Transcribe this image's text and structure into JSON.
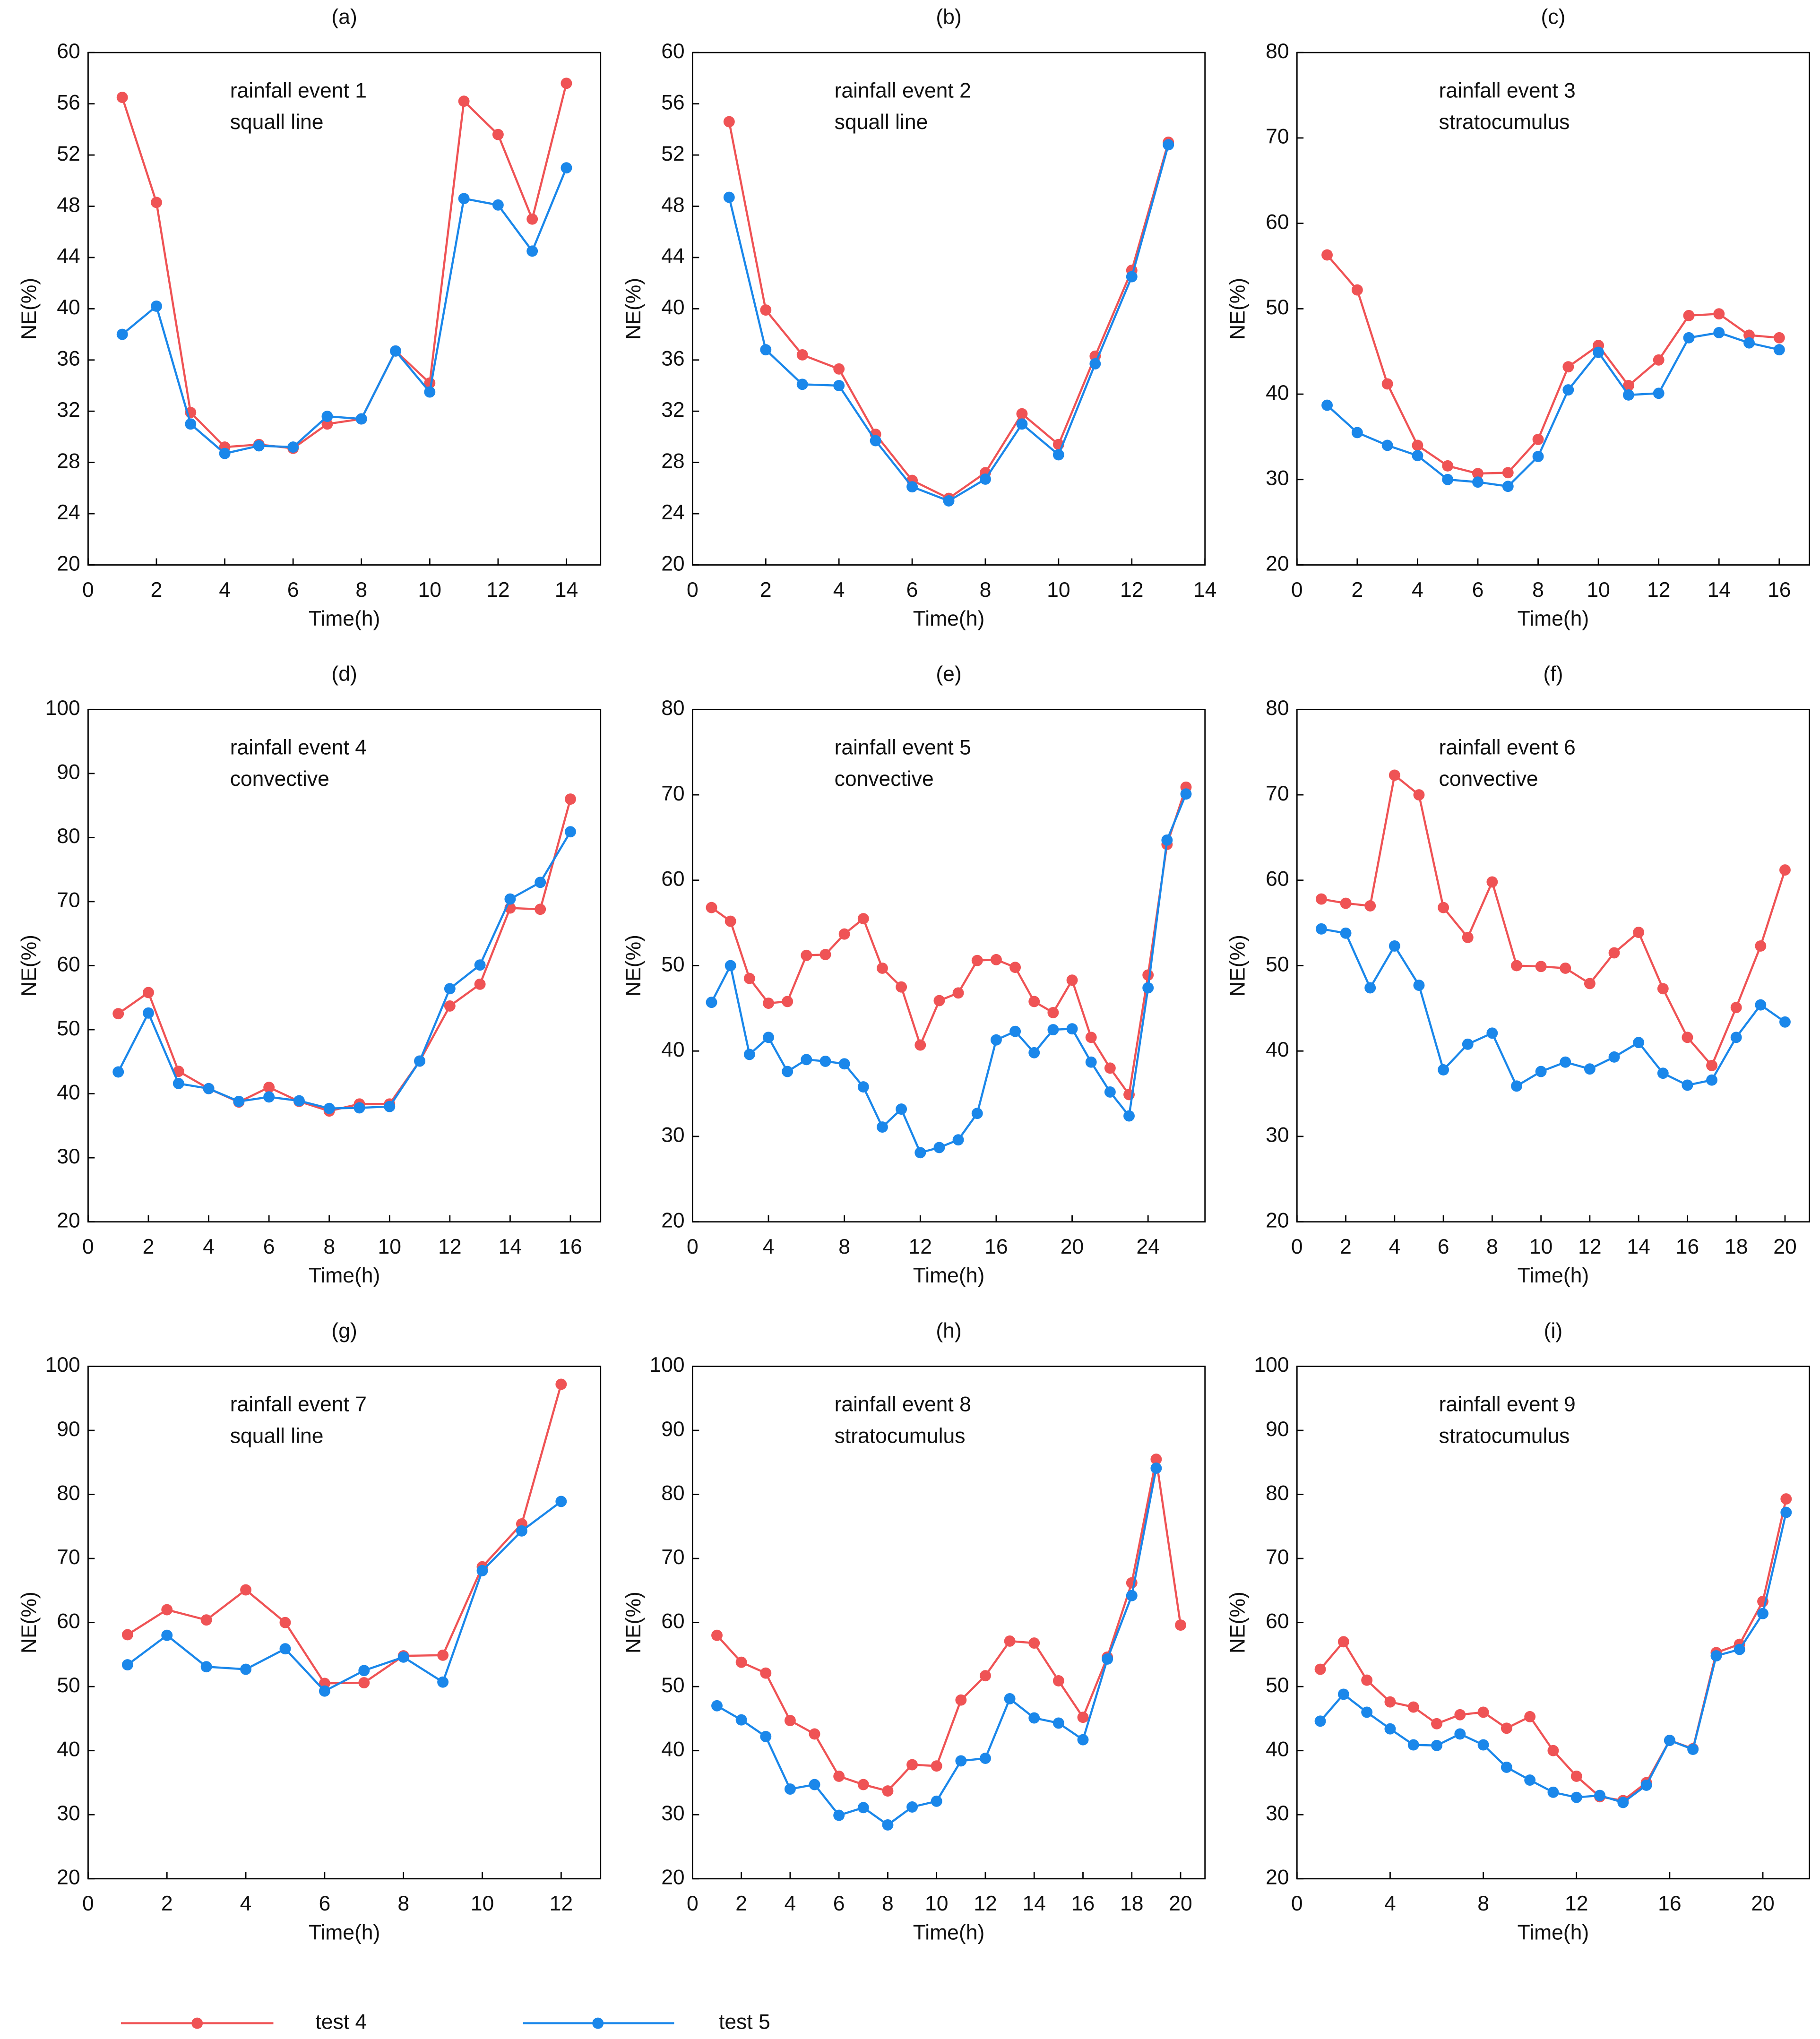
{
  "chart_data": [
    {
      "type": "line",
      "title": "(a)",
      "annotation": [
        "rainfall event 1",
        "squall line"
      ],
      "xlabel": "Time(h)",
      "ylabel": "NE(%)",
      "x": [
        1,
        2,
        3,
        4,
        5,
        6,
        7,
        8,
        9,
        10,
        11,
        12,
        13,
        14
      ],
      "xlim": [
        0,
        15
      ],
      "xticks": [
        0,
        2,
        4,
        6,
        8,
        10,
        12,
        14
      ],
      "ylim": [
        20,
        60
      ],
      "yticks": [
        20,
        24,
        28,
        32,
        36,
        40,
        44,
        48,
        52,
        56,
        60
      ],
      "series": [
        {
          "name": "test 4",
          "color": "#ef5355",
          "values": [
            56.5,
            48.3,
            31.9,
            29.2,
            29.4,
            29.1,
            31.0,
            31.4,
            36.7,
            34.2,
            56.2,
            53.6,
            47.0,
            57.6
          ]
        },
        {
          "name": "test 5",
          "color": "#1a87ea",
          "values": [
            38.0,
            40.2,
            31.0,
            28.7,
            29.3,
            29.2,
            31.6,
            31.4,
            36.7,
            33.5,
            48.6,
            48.1,
            44.5,
            51.0
          ]
        }
      ]
    },
    {
      "type": "line",
      "title": "(b)",
      "annotation": [
        "rainfall event 2",
        "squall line"
      ],
      "xlabel": "Time(h)",
      "ylabel": "NE(%)",
      "x": [
        1,
        2,
        3,
        4,
        5,
        6,
        7,
        8,
        9,
        10,
        11,
        12,
        13
      ],
      "xlim": [
        0,
        14
      ],
      "xticks": [
        0,
        2,
        4,
        6,
        8,
        10,
        12,
        14
      ],
      "ylim": [
        20,
        60
      ],
      "yticks": [
        20,
        24,
        28,
        32,
        36,
        40,
        44,
        48,
        52,
        56,
        60
      ],
      "series": [
        {
          "name": "test 4",
          "color": "#ef5355",
          "values": [
            54.6,
            39.9,
            36.4,
            35.3,
            30.2,
            26.6,
            25.2,
            27.2,
            31.8,
            29.4,
            36.3,
            43.0,
            53.0
          ]
        },
        {
          "name": "test 5",
          "color": "#1a87ea",
          "values": [
            48.7,
            36.8,
            34.1,
            34.0,
            29.7,
            26.1,
            25.0,
            26.7,
            31.0,
            28.6,
            35.7,
            42.5,
            52.8
          ]
        }
      ]
    },
    {
      "type": "line",
      "title": "(c)",
      "annotation": [
        "rainfall event 3",
        "stratocumulus"
      ],
      "xlabel": "Time(h)",
      "ylabel": "NE(%)",
      "x": [
        1,
        2,
        3,
        4,
        5,
        6,
        7,
        8,
        9,
        10,
        11,
        12,
        13,
        14,
        15,
        16
      ],
      "xlim": [
        0,
        17
      ],
      "xticks": [
        0,
        2,
        4,
        6,
        8,
        10,
        12,
        14,
        16
      ],
      "ylim": [
        20,
        80
      ],
      "yticks": [
        20,
        30,
        40,
        50,
        60,
        70,
        80
      ],
      "series": [
        {
          "name": "test 4",
          "color": "#ef5355",
          "values": [
            56.3,
            52.2,
            41.2,
            34.0,
            31.6,
            30.7,
            30.8,
            34.7,
            43.2,
            45.7,
            41.0,
            44.0,
            49.2,
            49.4,
            46.9,
            46.6
          ]
        },
        {
          "name": "test 5",
          "color": "#1a87ea",
          "values": [
            38.7,
            35.5,
            34.0,
            32.8,
            30.0,
            29.7,
            29.2,
            32.7,
            40.5,
            44.9,
            39.9,
            40.1,
            46.6,
            47.2,
            46.0,
            45.2
          ]
        }
      ]
    },
    {
      "type": "line",
      "title": "(d)",
      "annotation": [
        "rainfall event 4",
        "convective"
      ],
      "xlabel": "Time(h)",
      "ylabel": "NE(%)",
      "x": [
        1,
        2,
        3,
        4,
        5,
        6,
        7,
        8,
        9,
        10,
        11,
        12,
        13,
        14,
        15,
        16
      ],
      "xlim": [
        0,
        17
      ],
      "xticks": [
        0,
        2,
        4,
        6,
        8,
        10,
        12,
        14,
        16
      ],
      "ylim": [
        20,
        100
      ],
      "yticks": [
        20,
        30,
        40,
        50,
        60,
        70,
        80,
        90,
        100
      ],
      "series": [
        {
          "name": "test 4",
          "color": "#ef5355",
          "values": [
            52.5,
            55.8,
            43.5,
            40.8,
            38.7,
            41.0,
            38.8,
            37.3,
            38.4,
            38.4,
            45.1,
            53.7,
            57.1,
            69.0,
            68.8,
            86.0
          ]
        },
        {
          "name": "test 5",
          "color": "#1a87ea",
          "values": [
            43.4,
            52.6,
            41.6,
            40.8,
            38.8,
            39.5,
            38.9,
            37.7,
            37.8,
            38.0,
            45.1,
            56.4,
            60.1,
            70.4,
            73.0,
            80.9
          ]
        }
      ]
    },
    {
      "type": "line",
      "title": "(e)",
      "annotation": [
        "rainfall event 5",
        "convective"
      ],
      "xlabel": "Time(h)",
      "ylabel": "NE(%)",
      "x": [
        1,
        2,
        3,
        4,
        5,
        6,
        7,
        8,
        9,
        10,
        11,
        12,
        13,
        14,
        15,
        16,
        17,
        18,
        19,
        20,
        21,
        22,
        23,
        24,
        25,
        26
      ],
      "xlim": [
        0,
        27
      ],
      "xticks": [
        0,
        4,
        8,
        12,
        16,
        20,
        24
      ],
      "ylim": [
        20,
        80
      ],
      "yticks": [
        20,
        30,
        40,
        50,
        60,
        70,
        80
      ],
      "series": [
        {
          "name": "test 4",
          "color": "#ef5355",
          "values": [
            56.8,
            55.2,
            48.5,
            45.6,
            45.8,
            51.2,
            51.3,
            53.7,
            55.5,
            49.7,
            47.5,
            40.7,
            45.9,
            46.8,
            50.6,
            50.7,
            49.8,
            45.8,
            44.5,
            48.3,
            41.6,
            38.0,
            34.9,
            48.9,
            64.2,
            70.9
          ]
        },
        {
          "name": "test 5",
          "color": "#1a87ea",
          "values": [
            45.7,
            50.0,
            39.6,
            41.6,
            37.6,
            39.0,
            38.8,
            38.5,
            35.8,
            31.1,
            33.2,
            28.1,
            28.7,
            29.6,
            32.7,
            41.3,
            42.3,
            39.8,
            42.5,
            42.6,
            38.7,
            35.2,
            32.4,
            47.4,
            64.7,
            70.1
          ]
        }
      ]
    },
    {
      "type": "line",
      "title": "(f)",
      "annotation": [
        "rainfall event 6",
        "convective"
      ],
      "xlabel": "Time(h)",
      "ylabel": "NE(%)",
      "x": [
        1,
        2,
        3,
        4,
        5,
        6,
        7,
        8,
        9,
        10,
        11,
        12,
        13,
        14,
        15,
        16,
        17,
        18,
        19,
        20
      ],
      "xlim": [
        0,
        21
      ],
      "xticks": [
        0,
        2,
        4,
        6,
        8,
        10,
        12,
        14,
        16,
        18,
        20
      ],
      "ylim": [
        20,
        80
      ],
      "yticks": [
        20,
        30,
        40,
        50,
        60,
        70,
        80
      ],
      "series": [
        {
          "name": "test 4",
          "color": "#ef5355",
          "values": [
            57.8,
            57.3,
            57.0,
            72.3,
            70.0,
            56.8,
            53.3,
            59.8,
            50.0,
            49.9,
            49.7,
            47.9,
            51.5,
            53.9,
            47.3,
            41.6,
            38.3,
            45.1,
            52.3,
            61.2
          ]
        },
        {
          "name": "test 5",
          "color": "#1a87ea",
          "values": [
            54.3,
            53.8,
            47.4,
            52.3,
            47.7,
            37.8,
            40.8,
            42.1,
            35.9,
            37.6,
            38.7,
            37.9,
            39.3,
            41.0,
            37.4,
            36.0,
            36.6,
            41.6,
            45.4,
            43.4
          ]
        }
      ]
    },
    {
      "type": "line",
      "title": "(g)",
      "annotation": [
        "rainfall event 7",
        "squall line"
      ],
      "xlabel": "Time(h)",
      "ylabel": "NE(%)",
      "x": [
        1,
        2,
        3,
        4,
        5,
        6,
        7,
        8,
        9,
        10,
        11,
        12
      ],
      "xlim": [
        0,
        13
      ],
      "xticks": [
        0,
        2,
        4,
        6,
        8,
        10,
        12
      ],
      "ylim": [
        20,
        100
      ],
      "yticks": [
        20,
        30,
        40,
        50,
        60,
        70,
        80,
        90,
        100
      ],
      "series": [
        {
          "name": "test 4",
          "color": "#ef5355",
          "values": [
            58.1,
            62.0,
            60.4,
            65.1,
            60.0,
            50.5,
            50.6,
            54.8,
            54.9,
            68.7,
            75.4,
            97.2
          ]
        },
        {
          "name": "test 5",
          "color": "#1a87ea",
          "values": [
            53.4,
            58.0,
            53.1,
            52.7,
            55.9,
            49.3,
            52.5,
            54.6,
            50.7,
            68.1,
            74.3,
            78.9
          ]
        }
      ]
    },
    {
      "type": "line",
      "title": "(h)",
      "annotation": [
        "rainfall event 8",
        "stratocumulus"
      ],
      "xlabel": "Time(h)",
      "ylabel": "NE(%)",
      "x": [
        1,
        2,
        3,
        4,
        5,
        6,
        7,
        8,
        9,
        10,
        11,
        12,
        13,
        14,
        15,
        16,
        17,
        18,
        19,
        20
      ],
      "xlim": [
        0,
        21
      ],
      "xticks": [
        0,
        2,
        4,
        6,
        8,
        10,
        12,
        14,
        16,
        18,
        20
      ],
      "ylim": [
        20,
        100
      ],
      "yticks": [
        20,
        30,
        40,
        50,
        60,
        70,
        80,
        90,
        100
      ],
      "series": [
        {
          "name": "test 4",
          "color": "#ef5355",
          "values": [
            58.0,
            53.8,
            52.1,
            44.7,
            42.6,
            36.0,
            34.7,
            33.7,
            37.8,
            37.6,
            47.9,
            51.7,
            57.1,
            56.8,
            50.9,
            45.2,
            54.6,
            66.2,
            85.5,
            59.6
          ]
        },
        {
          "name": "test 5",
          "color": "#1a87ea",
          "values": [
            47.0,
            44.8,
            42.2,
            34.0,
            34.7,
            29.9,
            31.1,
            28.4,
            31.2,
            32.1,
            38.4,
            38.8,
            48.1,
            45.1,
            44.3,
            41.7,
            54.3,
            64.2,
            84.1,
            null
          ]
        }
      ]
    },
    {
      "type": "line",
      "title": "(i)",
      "annotation": [
        "rainfall event 9",
        "stratocumulus"
      ],
      "xlabel": "Time(h)",
      "ylabel": "NE(%)",
      "x": [
        1,
        2,
        3,
        4,
        5,
        6,
        7,
        8,
        9,
        10,
        11,
        12,
        13,
        14,
        15,
        16,
        17,
        18,
        19,
        20,
        21
      ],
      "xlim": [
        0,
        22
      ],
      "xticks": [
        0,
        4,
        8,
        12,
        16,
        20
      ],
      "ylim": [
        20,
        100
      ],
      "yticks": [
        20,
        30,
        40,
        50,
        60,
        70,
        80,
        90,
        100
      ],
      "series": [
        {
          "name": "test 4",
          "color": "#ef5355",
          "values": [
            52.7,
            57.0,
            51.0,
            47.6,
            46.8,
            44.2,
            45.6,
            46.0,
            43.5,
            45.3,
            40.0,
            36.0,
            32.8,
            32.2,
            35.0,
            41.6,
            40.3,
            55.3,
            56.6,
            63.3,
            79.3
          ]
        },
        {
          "name": "test 5",
          "color": "#1a87ea",
          "values": [
            44.6,
            48.8,
            46.0,
            43.4,
            40.9,
            40.8,
            42.6,
            40.9,
            37.4,
            35.4,
            33.5,
            32.7,
            33.0,
            31.9,
            34.6,
            41.6,
            40.2,
            54.8,
            55.8,
            61.4,
            77.2
          ]
        }
      ]
    }
  ]
}
